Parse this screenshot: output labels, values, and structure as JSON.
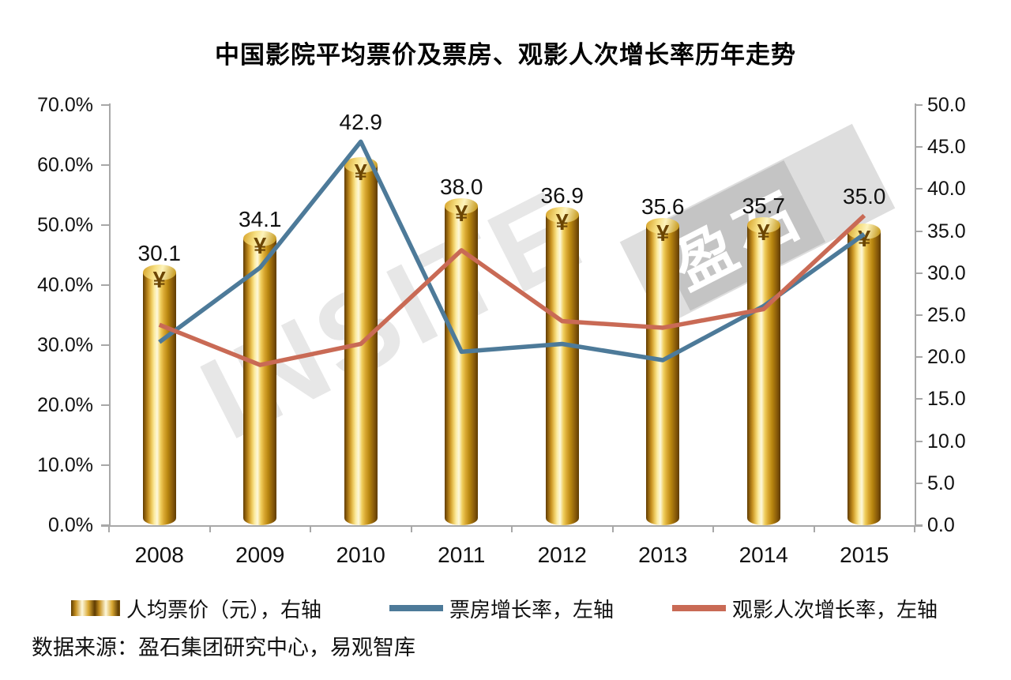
{
  "title": "中国影院平均票价及票房、观影人次增长率历年走势",
  "source": "数据来源：盈石集团研究中心，易观智库",
  "watermark": {
    "text": "INSITE",
    "logo_text": "盈石"
  },
  "legend": [
    {
      "label": "人均票价（元），右轴",
      "type": "bar",
      "color": "#d9a832"
    },
    {
      "label": "票房增长率，左轴",
      "type": "line",
      "color": "#4d7a99"
    },
    {
      "label": "观影人次增长率，左轴",
      "type": "line",
      "color": "#c96a55"
    }
  ],
  "chart_data": {
    "type": "combo",
    "title": "中国影院平均票价及票房、观影人次增长率历年走势",
    "categories": [
      "2008",
      "2009",
      "2010",
      "2011",
      "2012",
      "2013",
      "2014",
      "2015"
    ],
    "series": [
      {
        "name": "人均票价（元），右轴",
        "type": "bar",
        "axis": "right",
        "values": [
          30.1,
          34.1,
          42.9,
          38.0,
          36.9,
          35.6,
          35.7,
          35.0
        ],
        "labels": [
          "30.1",
          "34.1",
          "42.9",
          "38.0",
          "36.9",
          "35.6",
          "35.7",
          "35.0"
        ],
        "color": "#d9a832"
      },
      {
        "name": "票房增长率，左轴",
        "type": "line",
        "axis": "left",
        "values": [
          30.5,
          42.9,
          63.9,
          28.9,
          30.2,
          27.5,
          36.5,
          48.5
        ],
        "color": "#4d7a99"
      },
      {
        "name": "观影人次增长率，左轴",
        "type": "line",
        "axis": "left",
        "values": [
          33.4,
          26.7,
          30.2,
          45.8,
          34.0,
          32.9,
          36.0,
          51.6
        ],
        "color": "#c96a55"
      }
    ],
    "left_axis": {
      "min": 0,
      "max": 70,
      "step": 10,
      "suffix": "%"
    },
    "right_axis": {
      "min": 0,
      "max": 50,
      "step": 5
    },
    "currency_symbol": "¥",
    "grid": "off",
    "legend_position": "bottom"
  }
}
